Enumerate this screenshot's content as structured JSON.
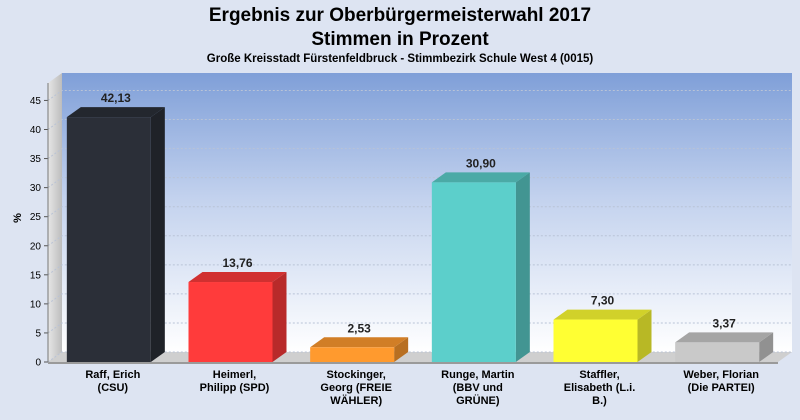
{
  "chart_data": {
    "type": "bar",
    "title_lines": [
      "Ergebnis zur Oberbürgermeisterwahl 2017",
      "Stimmen in Prozent"
    ],
    "subtitle": "Große Kreisstadt Fürstenfeldbruck - Stimmbezirk Schule West 4 (0015)",
    "ylabel": "%",
    "ylim": [
      0,
      48
    ],
    "yticks": [
      0,
      5,
      10,
      15,
      20,
      25,
      30,
      35,
      40,
      45
    ],
    "grid": true,
    "categories": [
      [
        "Raff, Erich",
        "(CSU)"
      ],
      [
        "Heimerl,",
        "Philipp (SPD)"
      ],
      [
        "Stockinger,",
        "Georg (FREIE",
        "WÄHLER)"
      ],
      [
        "Runge, Martin",
        "(BBV und",
        "GRÜNE)"
      ],
      [
        "Staffler,",
        "Elisabeth (L.i.",
        "B.)"
      ],
      [
        "Weber, Florian",
        "(Die PARTEI)"
      ]
    ],
    "values": [
      42.13,
      13.76,
      2.53,
      30.9,
      7.3,
      3.37
    ],
    "value_labels": [
      "42,13",
      "13,76",
      "2,53",
      "30,90",
      "7,30",
      "3,37"
    ],
    "colors": [
      "#2b2f38",
      "#ff3b3b",
      "#ff9a2e",
      "#5ccfcb",
      "#ffff33",
      "#c9c9c9"
    ]
  }
}
